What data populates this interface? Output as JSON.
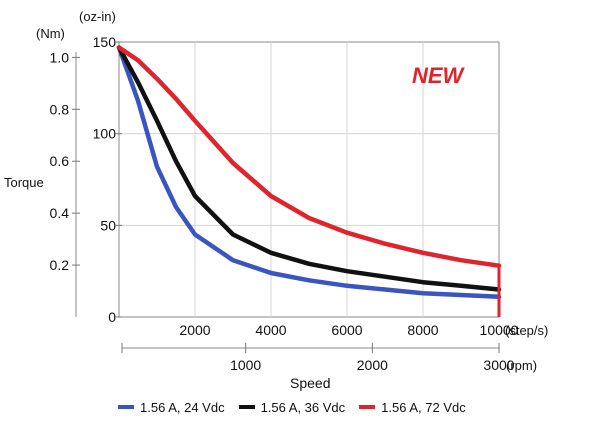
{
  "chart_data": {
    "type": "line",
    "badge": "NEW",
    "ylabel": "Torque",
    "xlabel": "Speed",
    "y_unit_left": "(Nm)",
    "y_unit_right": "(oz-in)",
    "x_unit_primary": "(step/s)",
    "x_unit_secondary": "(rpm)",
    "y_ticks_nm": [
      "1.0",
      "0.8",
      "0.6",
      "0.4",
      "0.2"
    ],
    "y_ticks_ozin": [
      "150",
      "100",
      "50",
      "0"
    ],
    "x_ticks_steps": [
      "2000",
      "4000",
      "6000",
      "8000",
      "10000"
    ],
    "x_ticks_rpm": [
      "1000",
      "2000",
      "3000"
    ],
    "xlim": [
      0,
      10000
    ],
    "ylim_ozin": [
      0,
      150
    ],
    "grid": true,
    "legend_position": "bottom",
    "series": [
      {
        "name": "1.56 A, 24 Vdc",
        "color": "#3a55c0",
        "x": [
          0,
          500,
          1000,
          1500,
          2000,
          3000,
          4000,
          5000,
          6000,
          7000,
          8000,
          9000,
          10000
        ],
        "y": [
          147,
          118,
          82,
          60,
          45,
          31,
          24,
          20,
          17,
          15,
          13,
          12,
          11
        ]
      },
      {
        "name": "1.56 A, 36 Vdc",
        "color": "#111111",
        "x": [
          0,
          500,
          1000,
          1500,
          2000,
          3000,
          4000,
          5000,
          6000,
          7000,
          8000,
          9000,
          10000
        ],
        "y": [
          147,
          128,
          107,
          85,
          66,
          45,
          35,
          29,
          25,
          22,
          19,
          17,
          15
        ]
      },
      {
        "name": "1.56 A, 72 Vdc",
        "color": "#e0242b",
        "x": [
          0,
          500,
          1000,
          1500,
          2000,
          3000,
          4000,
          5000,
          6000,
          7000,
          8000,
          9000,
          10000
        ],
        "y": [
          147,
          140,
          130,
          119,
          107,
          84,
          66,
          54,
          46,
          40,
          35,
          31,
          28
        ]
      }
    ]
  }
}
